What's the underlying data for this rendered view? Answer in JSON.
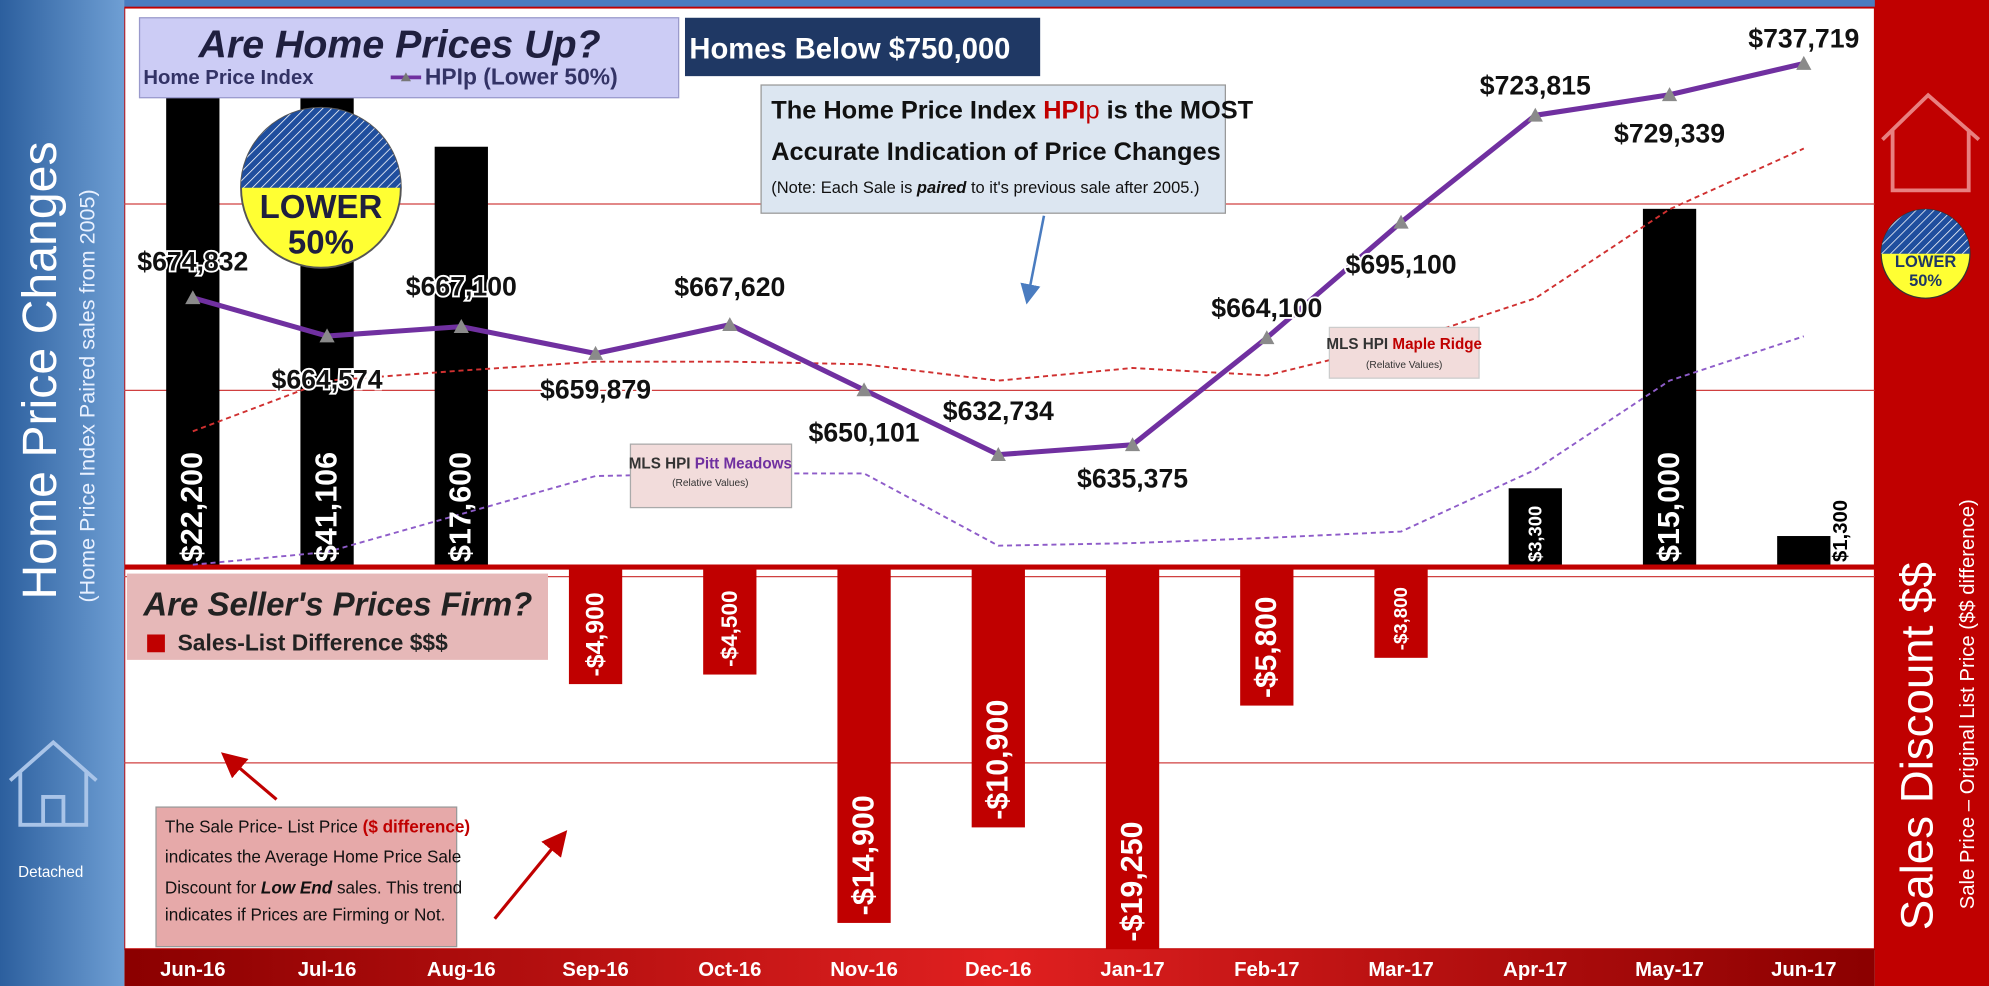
{
  "left_panel": {
    "title": "Home Price Changes",
    "subtitle": "(Home Price Index Paired sales from 2005)",
    "icon_label": "Detached"
  },
  "right_panel": {
    "title": "Sales Discount $$",
    "subtitle": "Sale Price – Original List Price ($$ difference)",
    "badge": [
      "LOWER",
      "50%"
    ]
  },
  "chart_data": {
    "type": "combo",
    "title": "Are Home Prices Up?",
    "subtitle": "Home Price Index",
    "banner": "Homes Below $750,000",
    "badge": [
      "LOWER",
      "50%"
    ],
    "bar_title": "Are Seller's Prices Firm?",
    "categories": [
      "Jun-16",
      "Jul-16",
      "Aug-16",
      "Sep-16",
      "Oct-16",
      "Nov-16",
      "Dec-16",
      "Jan-17",
      "Feb-17",
      "Mar-17",
      "Apr-17",
      "May-17",
      "Jun-17"
    ],
    "ylim": [
      500000,
      750000
    ],
    "yticks": [
      550000,
      600000,
      650000,
      700000
    ],
    "grid": true,
    "y2lim": [
      -16000,
      23000
    ],
    "series": [
      {
        "name": "HPIp (Lower 50%)",
        "type": "line",
        "color": "#7030a0",
        "values": [
          674832,
          664574,
          667100,
          659879,
          667620,
          650101,
          632734,
          635375,
          664100,
          695100,
          723815,
          729339,
          737719
        ],
        "value_labels": [
          "$674,832",
          "$664,574",
          "$667,100",
          "$659,879",
          "$667,620",
          "$650,101",
          "$632,734",
          "$635,375",
          "$664,100",
          "$695,100",
          "$723,815",
          "$729,339",
          "$737,719"
        ]
      },
      {
        "name": "Sales-List Difference $$$",
        "type": "bar",
        "axis": "y2",
        "color": "#000000",
        "negative_color": "#c00000",
        "values": [
          22200,
          41106,
          17600,
          -4900,
          -4500,
          -14900,
          -10900,
          -19250,
          -5800,
          -3800,
          3300,
          15000,
          1300
        ],
        "value_labels": [
          "$22,200",
          "$41,106",
          "$17,600",
          "-$4,900",
          "-$4,500",
          "-$14,900",
          "-$10,900",
          "-$19,250",
          "-$5,800",
          "-$3,800",
          "$3,300",
          "$15,000",
          "$1,300"
        ]
      },
      {
        "name": "Maple Ridge",
        "label_prefix": "MLS HPI",
        "note": "(Relative Values)",
        "type": "dashed",
        "color": "#d03030",
        "values": [
          639000,
          652600,
          655300,
          657700,
          657700,
          657000,
          652600,
          656000,
          654000,
          662800,
          674700,
          698600,
          714900
        ]
      },
      {
        "name": "Pitt Meadows",
        "label_prefix": "MLS HPI",
        "note": "(Relative Values)",
        "type": "dashed",
        "color": "#8e5cc9",
        "values": [
          603200,
          606600,
          616800,
          627000,
          627700,
          627700,
          608300,
          609000,
          610400,
          612100,
          628700,
          652600,
          664500
        ]
      }
    ],
    "annotations": [
      {
        "lines": [
          [
            "The Home Price Index ",
            "HPI",
            "p",
            " is the MOST"
          ],
          [
            "Accurate Indication of Price Changes"
          ],
          [
            "(Note: Each Sale is ",
            "paired",
            " to it's previous sale after 2005.)"
          ]
        ]
      },
      {
        "lines": [
          [
            "The Sale Price- List Price ",
            "($ difference)"
          ],
          [
            "indicates the Average Home Price Sale"
          ],
          [
            "Discount for ",
            "Low End",
            " sales. This trend"
          ],
          [
            "indicates if Prices are Firming or Not."
          ]
        ]
      }
    ]
  }
}
